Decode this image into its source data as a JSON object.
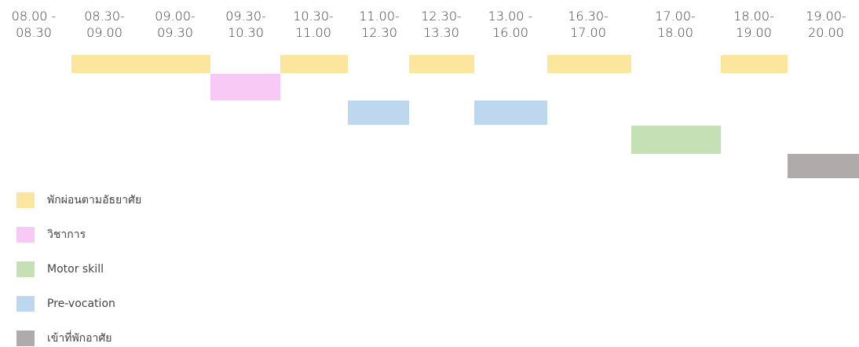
{
  "schedule": {
    "time_slots": [
      {
        "start": "08.00 -",
        "end": "08.30"
      },
      {
        "start": "08.30-",
        "end": "09.00"
      },
      {
        "start": "09.00-",
        "end": "09.30"
      },
      {
        "start": "09.30-",
        "end": "10.30"
      },
      {
        "start": "10.30-",
        "end": "11.00"
      },
      {
        "start": "11.00-",
        "end": "12.30"
      },
      {
        "start": "12.30-",
        "end": "13.30"
      },
      {
        "start": "13.00 -",
        "end": "16.00"
      },
      {
        "start": "16.30-",
        "end": "17.00"
      },
      {
        "start": "17.00-",
        "end": "18.00"
      },
      {
        "start": "18.00-",
        "end": "19.00"
      },
      {
        "start": "19.00-",
        "end": "20.00"
      }
    ],
    "activity_blocks": [
      {
        "category": "leisure",
        "slot_span": [
          1,
          2
        ]
      },
      {
        "category": "academic",
        "slot_span": [
          3,
          3
        ]
      },
      {
        "category": "leisure",
        "slot_span": [
          4,
          4
        ]
      },
      {
        "category": "prevocation",
        "slot_span": [
          5,
          5
        ]
      },
      {
        "category": "leisure",
        "slot_span": [
          6,
          6
        ]
      },
      {
        "category": "prevocation",
        "slot_span": [
          7,
          7
        ]
      },
      {
        "category": "leisure",
        "slot_span": [
          8,
          8
        ]
      },
      {
        "category": "motor",
        "slot_span": [
          9,
          9
        ]
      },
      {
        "category": "leisure",
        "slot_span": [
          10,
          10
        ]
      },
      {
        "category": "dormitory",
        "slot_span": [
          11,
          11
        ]
      }
    ]
  },
  "legend": {
    "items": [
      {
        "key": "leisure",
        "label": "พักผ่อนตามอัธยาศัย",
        "color": "#FCE59C"
      },
      {
        "key": "academic",
        "label": "วิชาการ",
        "color": "#F9C9F5"
      },
      {
        "key": "motor",
        "label": "Motor skill",
        "color": "#C5E0B4"
      },
      {
        "key": "prevocation",
        "label": "Pre-vocation",
        "color": "#BDD7EE"
      },
      {
        "key": "dormitory",
        "label": "เข้าที่พักอาศัย",
        "color": "#AFABAB"
      }
    ]
  }
}
